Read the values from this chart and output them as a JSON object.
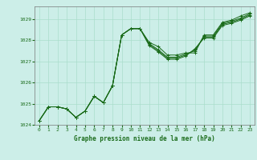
{
  "title": "Graphe pression niveau de la mer (hPa)",
  "bg_color": "#cceee8",
  "line_color": "#1a6b1a",
  "grid_color": "#aaddcc",
  "tick_color": "#1a6b1a",
  "xlim": [
    -0.5,
    23.5
  ],
  "ylim": [
    1024.0,
    1029.6
  ],
  "yticks": [
    1024,
    1025,
    1026,
    1027,
    1028,
    1029
  ],
  "xticks": [
    0,
    1,
    2,
    3,
    4,
    5,
    6,
    7,
    8,
    9,
    10,
    11,
    12,
    13,
    14,
    15,
    16,
    17,
    18,
    19,
    20,
    21,
    22,
    23
  ],
  "series": [
    [
      1024.2,
      1024.85,
      1024.85,
      1024.75,
      1024.35,
      1024.65,
      1025.35,
      1025.05,
      1025.85,
      1028.25,
      1028.55,
      1028.55,
      1027.9,
      1027.7,
      1027.3,
      1027.3,
      1027.4,
      1027.4,
      1028.25,
      1028.25,
      1028.85,
      1028.95,
      1029.15,
      1029.3
    ],
    [
      1024.2,
      1024.85,
      1024.85,
      1024.75,
      1024.35,
      1024.65,
      1025.35,
      1025.05,
      1025.85,
      1028.25,
      1028.55,
      1028.55,
      1027.85,
      1027.55,
      1027.2,
      1027.2,
      1027.35,
      1027.5,
      1028.2,
      1028.2,
      1028.8,
      1028.9,
      1029.05,
      1029.25
    ],
    [
      1024.2,
      1024.85,
      1024.85,
      1024.75,
      1024.35,
      1024.65,
      1025.35,
      1025.05,
      1025.85,
      1028.25,
      1028.55,
      1028.55,
      1027.8,
      1027.5,
      1027.15,
      1027.15,
      1027.3,
      1027.55,
      1028.15,
      1028.15,
      1028.75,
      1028.85,
      1029.0,
      1029.2
    ],
    [
      1024.2,
      1024.85,
      1024.85,
      1024.75,
      1024.35,
      1024.65,
      1025.35,
      1025.05,
      1025.85,
      1028.25,
      1028.55,
      1028.55,
      1027.75,
      1027.45,
      1027.1,
      1027.1,
      1027.25,
      1027.6,
      1028.1,
      1028.1,
      1028.7,
      1028.8,
      1028.95,
      1029.15
    ]
  ]
}
